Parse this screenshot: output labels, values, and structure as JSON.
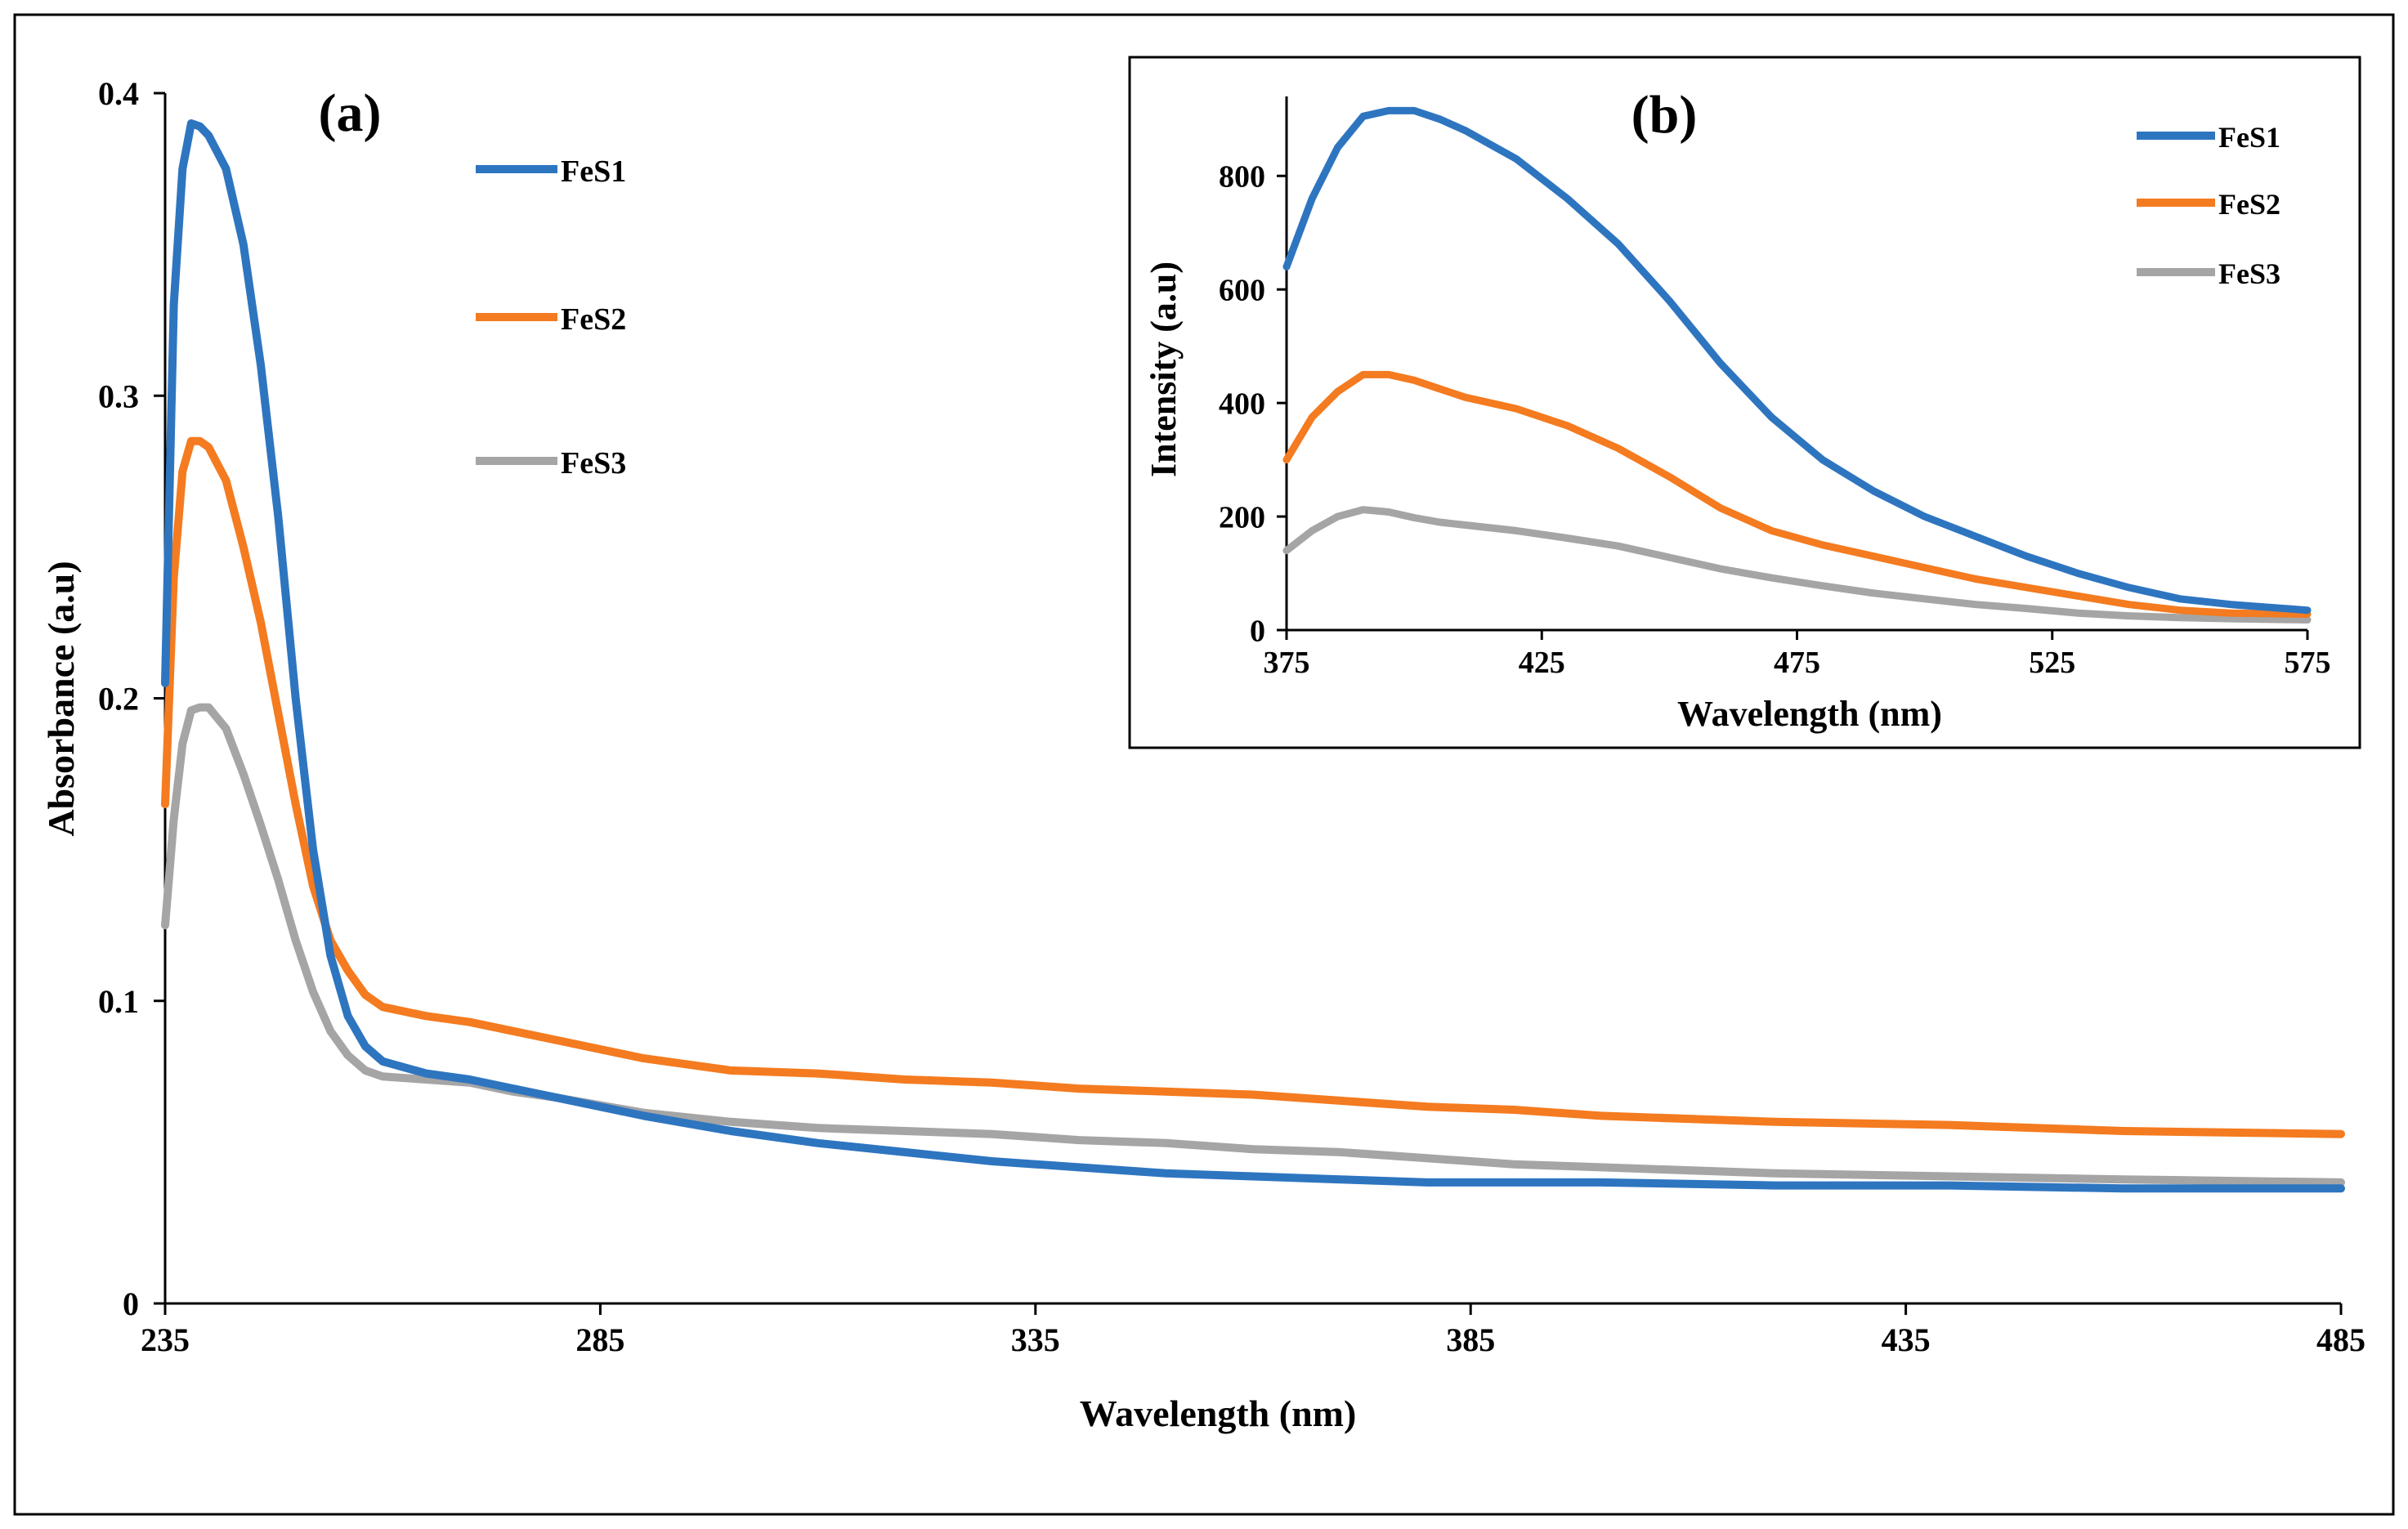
{
  "chart_data": [
    {
      "id": "a",
      "type": "line",
      "panel_label": "(a)",
      "xlabel": "Wavelength (nm)",
      "ylabel": "Absorbance (a.u)",
      "xlim": [
        235,
        485
      ],
      "ylim": [
        0,
        0.4
      ],
      "xticks": [
        235,
        285,
        335,
        385,
        435,
        485
      ],
      "yticks": [
        0,
        0.1,
        0.2,
        0.3,
        0.4
      ],
      "ytick_labels": [
        "0",
        "0.1",
        "0.2",
        "0.3",
        "0.4"
      ],
      "grid": false,
      "legend_position": "top-center",
      "series": [
        {
          "name": "FeS1",
          "color": "#2E75C0",
          "x": [
            235,
            236,
            237,
            238,
            239,
            240,
            242,
            244,
            246,
            248,
            250,
            252,
            254,
            256,
            258,
            260,
            265,
            270,
            275,
            280,
            290,
            300,
            310,
            320,
            330,
            340,
            350,
            360,
            370,
            380,
            390,
            400,
            420,
            440,
            460,
            485
          ],
          "y": [
            0.205,
            0.33,
            0.375,
            0.39,
            0.389,
            0.386,
            0.375,
            0.35,
            0.31,
            0.26,
            0.2,
            0.15,
            0.115,
            0.095,
            0.085,
            0.08,
            0.076,
            0.074,
            0.071,
            0.068,
            0.062,
            0.057,
            0.053,
            0.05,
            0.047,
            0.045,
            0.043,
            0.042,
            0.041,
            0.04,
            0.04,
            0.04,
            0.039,
            0.039,
            0.038,
            0.038
          ]
        },
        {
          "name": "FeS2",
          "color": "#F47B20",
          "x": [
            235,
            236,
            237,
            238,
            239,
            240,
            242,
            244,
            246,
            248,
            250,
            252,
            254,
            256,
            258,
            260,
            265,
            270,
            275,
            280,
            290,
            300,
            310,
            320,
            330,
            340,
            350,
            360,
            370,
            380,
            390,
            400,
            420,
            440,
            460,
            485
          ],
          "y": [
            0.165,
            0.24,
            0.275,
            0.285,
            0.285,
            0.283,
            0.272,
            0.25,
            0.225,
            0.195,
            0.165,
            0.138,
            0.12,
            0.11,
            0.102,
            0.098,
            0.095,
            0.093,
            0.09,
            0.087,
            0.081,
            0.077,
            0.076,
            0.074,
            0.073,
            0.071,
            0.07,
            0.069,
            0.067,
            0.065,
            0.064,
            0.062,
            0.06,
            0.059,
            0.057,
            0.056
          ]
        },
        {
          "name": "FeS3",
          "color": "#A5A5A5",
          "x": [
            235,
            236,
            237,
            238,
            239,
            240,
            242,
            244,
            246,
            248,
            250,
            252,
            254,
            256,
            258,
            260,
            265,
            270,
            275,
            280,
            290,
            300,
            310,
            320,
            330,
            340,
            350,
            360,
            370,
            380,
            390,
            400,
            420,
            440,
            460,
            485
          ],
          "y": [
            0.125,
            0.16,
            0.185,
            0.196,
            0.197,
            0.197,
            0.19,
            0.175,
            0.158,
            0.14,
            0.12,
            0.103,
            0.09,
            0.082,
            0.077,
            0.075,
            0.074,
            0.073,
            0.07,
            0.068,
            0.063,
            0.06,
            0.058,
            0.057,
            0.056,
            0.054,
            0.053,
            0.051,
            0.05,
            0.048,
            0.046,
            0.045,
            0.043,
            0.042,
            0.041,
            0.04
          ]
        }
      ]
    },
    {
      "id": "b",
      "type": "line",
      "panel_label": "(b)",
      "xlabel": "Wavelength (nm)",
      "ylabel": "Intensity (a.u)",
      "xlim": [
        375,
        575
      ],
      "ylim": [
        0,
        940
      ],
      "xticks": [
        375,
        425,
        475,
        525,
        575
      ],
      "yticks": [
        0,
        200,
        400,
        600,
        800
      ],
      "grid": false,
      "legend_position": "top-right",
      "series": [
        {
          "name": "FeS1",
          "color": "#2E75C0",
          "x": [
            375,
            380,
            385,
            390,
            395,
            400,
            405,
            410,
            420,
            430,
            440,
            450,
            460,
            470,
            480,
            490,
            500,
            510,
            520,
            530,
            540,
            550,
            560,
            575
          ],
          "y": [
            640,
            760,
            850,
            905,
            915,
            915,
            900,
            880,
            830,
            760,
            680,
            580,
            470,
            375,
            300,
            245,
            200,
            165,
            130,
            100,
            75,
            55,
            45,
            35
          ]
        },
        {
          "name": "FeS2",
          "color": "#F47B20",
          "x": [
            375,
            380,
            385,
            390,
            395,
            400,
            405,
            410,
            420,
            430,
            440,
            450,
            460,
            470,
            480,
            490,
            500,
            510,
            520,
            530,
            540,
            550,
            560,
            575
          ],
          "y": [
            300,
            375,
            420,
            450,
            450,
            440,
            425,
            410,
            390,
            360,
            320,
            270,
            215,
            175,
            150,
            130,
            110,
            90,
            75,
            60,
            45,
            35,
            30,
            28
          ]
        },
        {
          "name": "FeS3",
          "color": "#A5A5A5",
          "x": [
            375,
            380,
            385,
            390,
            395,
            400,
            405,
            410,
            420,
            430,
            440,
            450,
            460,
            470,
            480,
            490,
            500,
            510,
            520,
            530,
            540,
            550,
            560,
            575
          ],
          "y": [
            140,
            175,
            200,
            212,
            208,
            198,
            190,
            185,
            175,
            162,
            148,
            128,
            108,
            92,
            78,
            65,
            55,
            45,
            38,
            30,
            25,
            22,
            20,
            18
          ]
        }
      ]
    }
  ]
}
